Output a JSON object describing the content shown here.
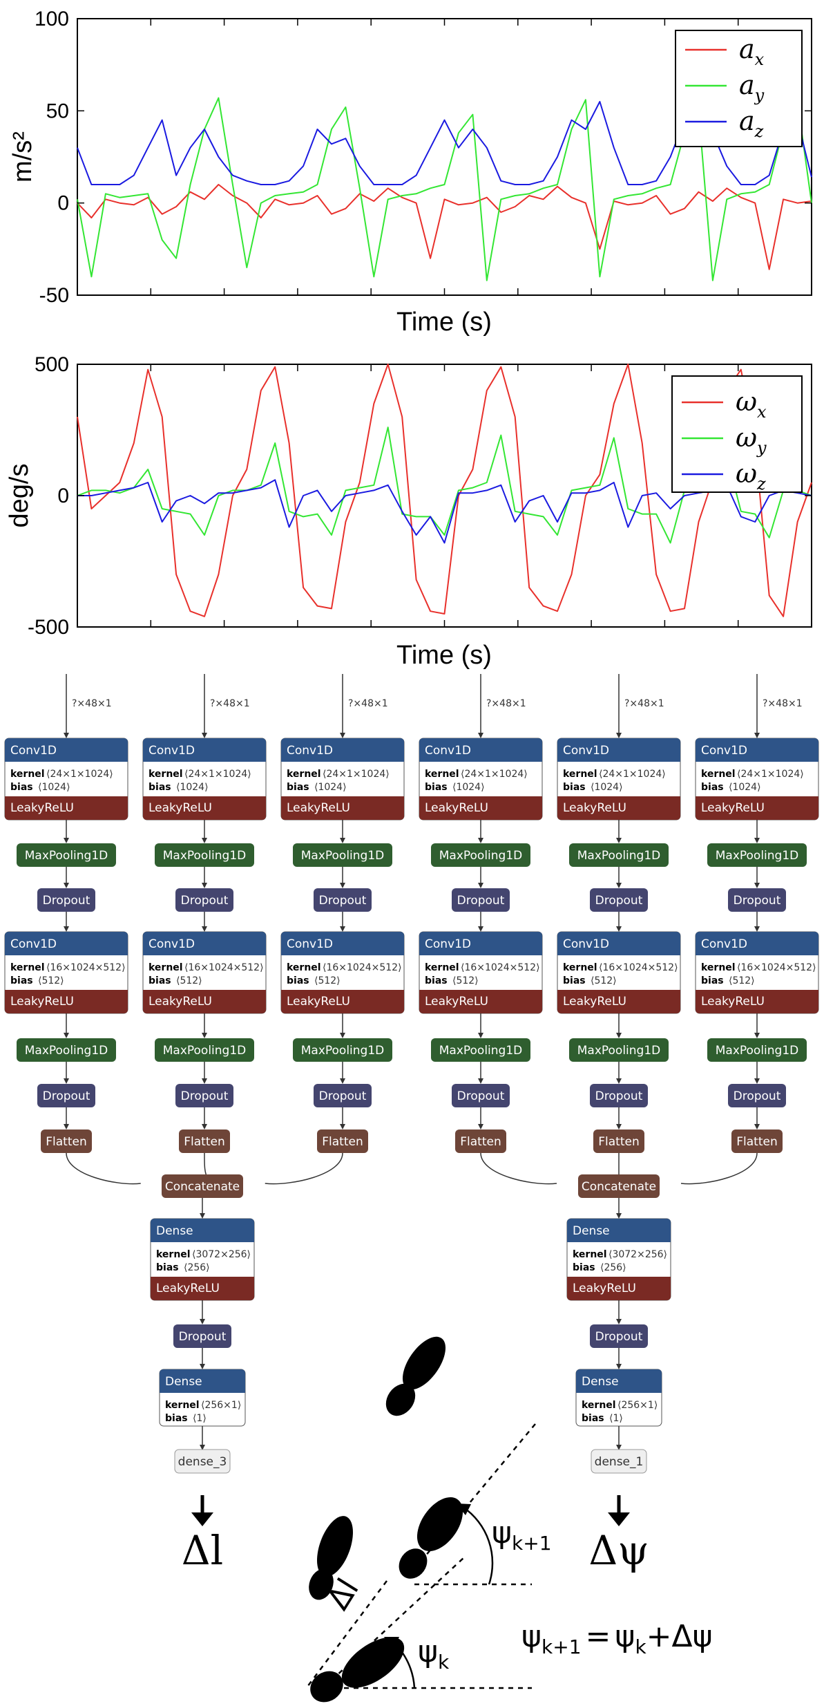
{
  "colors": {
    "ax": "#e8302b",
    "ay": "#33e633",
    "az": "#1a1ae0",
    "conv_header": "#2e5488",
    "activation": "#7a2a24",
    "pooling": "#2f5e2f",
    "dropout": "#44456f",
    "flatten": "#6e4538",
    "output": "#efefef"
  },
  "chart_data": [
    {
      "type": "line",
      "title": "",
      "xlabel": "Time (s)",
      "ylabel": "m/s²",
      "ylim": [
        -50,
        100
      ],
      "yticks": [
        "100",
        "50",
        "0",
        "-50"
      ],
      "xlim": [
        0,
        15
      ],
      "grid": false,
      "legend_position": "top-right",
      "legend_style": "mathematical-italic",
      "series": [
        {
          "name": "a",
          "sub": "x",
          "color_key": "ax",
          "values": [
            0,
            -8,
            2,
            0,
            -1,
            3,
            -6,
            -2,
            6,
            2,
            10,
            4,
            0,
            -8,
            2,
            -1,
            0,
            4,
            -6,
            -3,
            5,
            1,
            8,
            3,
            0,
            -30,
            2,
            -1,
            0,
            3,
            -5,
            -2,
            4,
            2,
            9,
            3,
            0,
            -25,
            1,
            -1,
            0,
            4,
            -6,
            -3,
            6,
            1,
            8,
            3,
            0,
            -36,
            2,
            0,
            1
          ]
        },
        {
          "name": "a",
          "sub": "y",
          "color_key": "ay",
          "values": [
            2,
            -40,
            5,
            3,
            4,
            5,
            -20,
            -30,
            10,
            40,
            57,
            10,
            -35,
            0,
            4,
            5,
            6,
            10,
            40,
            52,
            8,
            -40,
            2,
            4,
            5,
            8,
            10,
            38,
            48,
            -42,
            2,
            4,
            5,
            8,
            10,
            40,
            56,
            -40,
            2,
            4,
            5,
            8,
            10,
            38,
            50,
            -42,
            2,
            5,
            6,
            10,
            40,
            55,
            0
          ]
        },
        {
          "name": "a",
          "sub": "z",
          "color_key": "az",
          "values": [
            30,
            10,
            10,
            10,
            15,
            30,
            45,
            15,
            30,
            40,
            25,
            15,
            12,
            10,
            10,
            12,
            20,
            40,
            32,
            35,
            20,
            10,
            10,
            10,
            15,
            30,
            45,
            30,
            40,
            30,
            12,
            10,
            10,
            12,
            25,
            45,
            40,
            55,
            30,
            10,
            10,
            12,
            25,
            45,
            35,
            38,
            20,
            10,
            10,
            15,
            40,
            45,
            14
          ]
        }
      ]
    },
    {
      "type": "line",
      "title": "",
      "xlabel": "Time (s)",
      "ylabel": "deg/s",
      "ylim": [
        -500,
        500
      ],
      "yticks": [
        "500",
        "0",
        "-500"
      ],
      "xlim": [
        0,
        15
      ],
      "grid": false,
      "legend_position": "top-right",
      "legend_style": "mathematical-italic",
      "series": [
        {
          "name": "ω",
          "sub": "x",
          "color_key": "ax",
          "values": [
            300,
            -50,
            0,
            50,
            200,
            480,
            300,
            -300,
            -440,
            -460,
            -300,
            0,
            100,
            400,
            490,
            200,
            -350,
            -420,
            -430,
            -100,
            50,
            350,
            500,
            300,
            -320,
            -440,
            -450,
            0,
            100,
            400,
            490,
            300,
            -350,
            -420,
            -440,
            -300,
            0,
            80,
            350,
            500,
            200,
            -300,
            -440,
            -430,
            -100,
            60,
            400,
            480,
            200,
            -380,
            -460,
            -100,
            50
          ]
        },
        {
          "name": "ω",
          "sub": "y",
          "color_key": "ay",
          "values": [
            0,
            20,
            20,
            10,
            30,
            100,
            -50,
            -60,
            -70,
            -150,
            0,
            20,
            20,
            40,
            200,
            -60,
            -80,
            -70,
            -150,
            20,
            30,
            40,
            260,
            -70,
            -80,
            -80,
            -150,
            20,
            30,
            50,
            230,
            -60,
            -70,
            -80,
            -150,
            20,
            30,
            40,
            220,
            -50,
            -70,
            -70,
            -180,
            20,
            30,
            50,
            150,
            -60,
            -70,
            -160,
            20,
            20,
            0
          ]
        },
        {
          "name": "ω",
          "sub": "z",
          "color_key": "az",
          "values": [
            0,
            0,
            10,
            20,
            30,
            50,
            -100,
            -20,
            0,
            -30,
            10,
            10,
            20,
            30,
            60,
            -120,
            0,
            20,
            -60,
            0,
            10,
            20,
            40,
            -60,
            -150,
            -80,
            -180,
            10,
            10,
            20,
            40,
            -100,
            -20,
            0,
            -100,
            10,
            10,
            20,
            50,
            -120,
            0,
            10,
            -50,
            0,
            10,
            20,
            40,
            -80,
            -100,
            0,
            20,
            10,
            0
          ]
        }
      ]
    }
  ],
  "network": {
    "input_shape": "?×48×1",
    "conv1": {
      "title": "Conv1D",
      "kernel_label": "kernel",
      "kernel_value": "⟨24×1×1024⟩",
      "bias_label": "bias",
      "bias_value": "⟨1024⟩",
      "activation": "LeakyReLU"
    },
    "pool": "MaxPooling1D",
    "dropout": "Dropout",
    "conv2": {
      "title": "Conv1D",
      "kernel_label": "kernel",
      "kernel_value": "⟨16×1024×512⟩",
      "bias_label": "bias",
      "bias_value": "⟨512⟩",
      "activation": "LeakyReLU"
    },
    "flatten": "Flatten",
    "concatenate": "Concatenate",
    "dense1": {
      "title": "Dense",
      "kernel_label": "kernel",
      "kernel_value": "⟨3072×256⟩",
      "bias_label": "bias",
      "bias_value": "⟨256⟩",
      "activation": "LeakyReLU"
    },
    "dense2": {
      "title": "Dense",
      "kernel_label": "kernel",
      "kernel_value": "⟨256×1⟩",
      "bias_label": "bias",
      "bias_value": "⟨1⟩"
    },
    "outputs": [
      "dense_3",
      "dense_1"
    ]
  },
  "symbols": {
    "delta_l": "Δl",
    "delta_psi": "Δψ",
    "psi": "ψ",
    "sub_k1": "k+1",
    "sub_k": "k",
    "equation": "ψ",
    "equation_plus": "+Δψ",
    "equation_eq": "=",
    "step_label": "Δl"
  }
}
